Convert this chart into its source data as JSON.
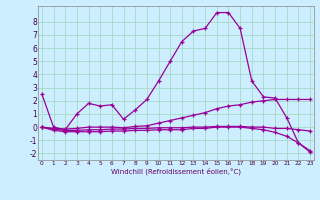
{
  "title": "",
  "xlabel": "Windchill (Refroidissement éolien,°C)",
  "background_color": "#cceeff",
  "grid_color": "#aaddcc",
  "line_color": "#990099",
  "series": [
    {
      "x": [
        0,
        1,
        2,
        3,
        4,
        5,
        6,
        7,
        8,
        9,
        10,
        11,
        12,
        13,
        14,
        15,
        16,
        17,
        18,
        19,
        20,
        21,
        22,
        23
      ],
      "y": [
        2.5,
        0.0,
        -0.2,
        1.0,
        1.8,
        1.6,
        1.7,
        0.6,
        1.3,
        2.1,
        3.5,
        5.0,
        6.5,
        7.3,
        7.5,
        8.7,
        8.7,
        7.5,
        3.5,
        2.3,
        2.2,
        0.7,
        -1.2,
        -1.8
      ]
    },
    {
      "x": [
        0,
        1,
        2,
        3,
        4,
        5,
        6,
        7,
        8,
        9,
        10,
        11,
        12,
        13,
        14,
        15,
        16,
        17,
        18,
        19,
        20,
        21,
        22,
        23
      ],
      "y": [
        0.0,
        -0.1,
        -0.15,
        -0.1,
        0.0,
        0.0,
        0.0,
        -0.05,
        0.05,
        0.1,
        0.3,
        0.5,
        0.7,
        0.9,
        1.1,
        1.4,
        1.6,
        1.7,
        1.9,
        2.0,
        2.1,
        2.1,
        2.1,
        2.1
      ]
    },
    {
      "x": [
        0,
        1,
        2,
        3,
        4,
        5,
        6,
        7,
        8,
        9,
        10,
        11,
        12,
        13,
        14,
        15,
        16,
        17,
        18,
        19,
        20,
        21,
        22,
        23
      ],
      "y": [
        0.0,
        -0.15,
        -0.25,
        -0.25,
        -0.2,
        -0.2,
        -0.15,
        -0.15,
        -0.1,
        -0.1,
        -0.05,
        -0.05,
        -0.05,
        0.0,
        0.0,
        0.05,
        0.05,
        0.05,
        0.0,
        0.0,
        -0.1,
        -0.1,
        -0.2,
        -0.3
      ]
    },
    {
      "x": [
        0,
        1,
        2,
        3,
        4,
        5,
        6,
        7,
        8,
        9,
        10,
        11,
        12,
        13,
        14,
        15,
        16,
        17,
        18,
        19,
        20,
        21,
        22,
        23
      ],
      "y": [
        0.0,
        -0.25,
        -0.35,
        -0.35,
        -0.35,
        -0.35,
        -0.3,
        -0.3,
        -0.25,
        -0.25,
        -0.2,
        -0.2,
        -0.2,
        -0.1,
        -0.1,
        0.0,
        0.0,
        0.0,
        -0.1,
        -0.2,
        -0.4,
        -0.7,
        -1.2,
        -1.9
      ]
    }
  ],
  "yticks": [
    -2,
    -1,
    0,
    1,
    2,
    3,
    4,
    5,
    6,
    7,
    8
  ],
  "xticks": [
    0,
    1,
    2,
    3,
    4,
    5,
    6,
    7,
    8,
    9,
    10,
    11,
    12,
    13,
    14,
    15,
    16,
    17,
    18,
    19,
    20,
    21,
    22,
    23
  ],
  "xlim": [
    -0.3,
    23.3
  ],
  "ylim": [
    -2.5,
    9.2
  ]
}
